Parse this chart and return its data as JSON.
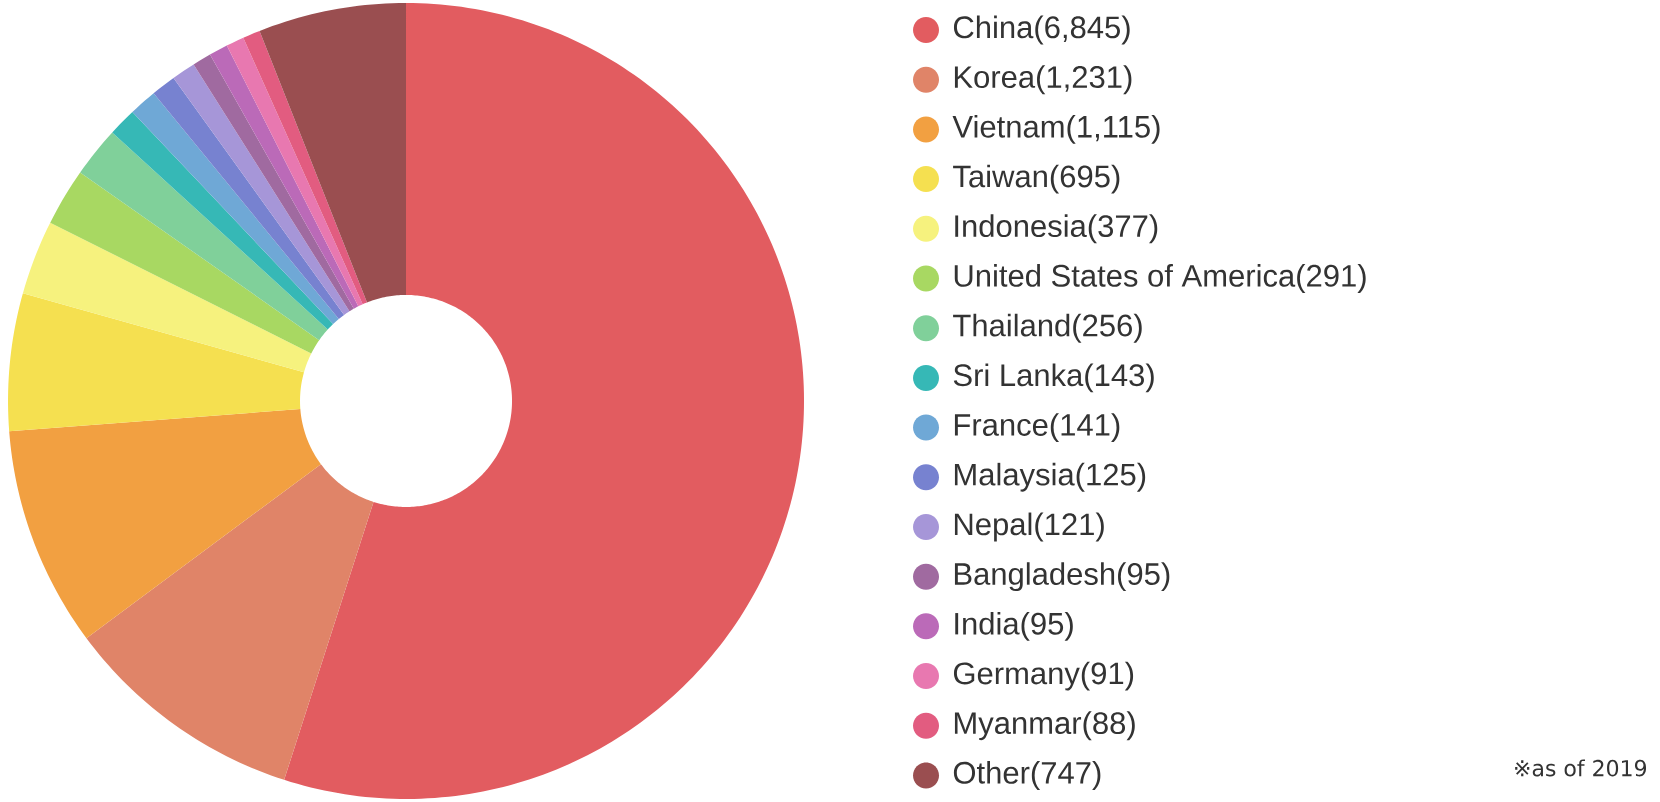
{
  "chart_data": {
    "type": "donut",
    "categories": [
      "China(6,845)",
      "Korea(1,231)",
      "Vietnam(1,115)",
      "Taiwan(695)",
      "Indonesia(377)",
      "United States of America(291)",
      "Thailand(256)",
      "Sri Lanka(143)",
      "France(141)",
      "Malaysia(125)",
      "Nepal(121)",
      "Bangladesh(95)",
      "India(95)",
      "Germany(91)",
      "Myanmar(88)",
      "Other(747)"
    ],
    "values": [
      6845,
      1231,
      1115,
      695,
      377,
      291,
      256,
      143,
      141,
      125,
      121,
      95,
      95,
      91,
      88,
      747
    ],
    "colors": [
      "#e25c60",
      "#e08468",
      "#f2a041",
      "#f5e050",
      "#f6f27e",
      "#a8d862",
      "#80d09a",
      "#36b8b6",
      "#6fa8d6",
      "#7782d0",
      "#a696d8",
      "#a06aa0",
      "#bb6ab8",
      "#e878b0",
      "#e25c80",
      "#9a4e50"
    ],
    "legend": "right",
    "annotations": [
      "※as of 2019"
    ]
  }
}
